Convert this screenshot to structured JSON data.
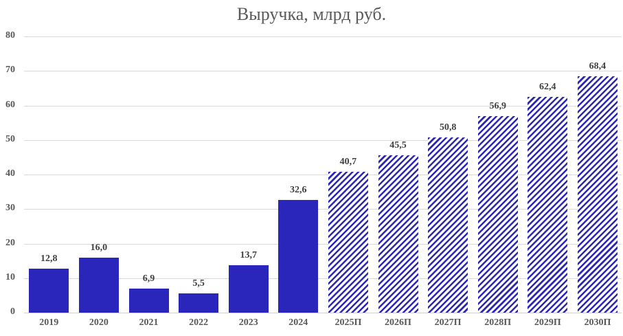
{
  "chart_data": {
    "type": "bar",
    "title": "Выручка, млрд руб.",
    "xlabel": "",
    "ylabel": "",
    "ylim": [
      0,
      80
    ],
    "yticks": [
      0,
      10,
      20,
      30,
      40,
      50,
      60,
      70,
      80
    ],
    "grid": true,
    "legend": null,
    "categories": [
      "2019",
      "2020",
      "2021",
      "2022",
      "2023",
      "2024",
      "2025П",
      "2026П",
      "2027П",
      "2028П",
      "2029П",
      "2030П"
    ],
    "values": [
      12.8,
      16.0,
      6.9,
      5.5,
      13.7,
      32.6,
      40.7,
      45.5,
      50.8,
      56.9,
      62.4,
      68.4
    ],
    "value_labels": [
      "12,8",
      "16,0",
      "6,9",
      "5,5",
      "13,7",
      "32,6",
      "40,7",
      "45,5",
      "50,8",
      "56,9",
      "62,4",
      "68,4"
    ],
    "bar_style": [
      "solid",
      "solid",
      "solid",
      "solid",
      "solid",
      "solid",
      "hatched",
      "hatched",
      "hatched",
      "hatched",
      "hatched",
      "hatched"
    ],
    "colors": {
      "bar": "#2a25bb",
      "text": "#595959",
      "grid": "#d9d9d9"
    }
  }
}
